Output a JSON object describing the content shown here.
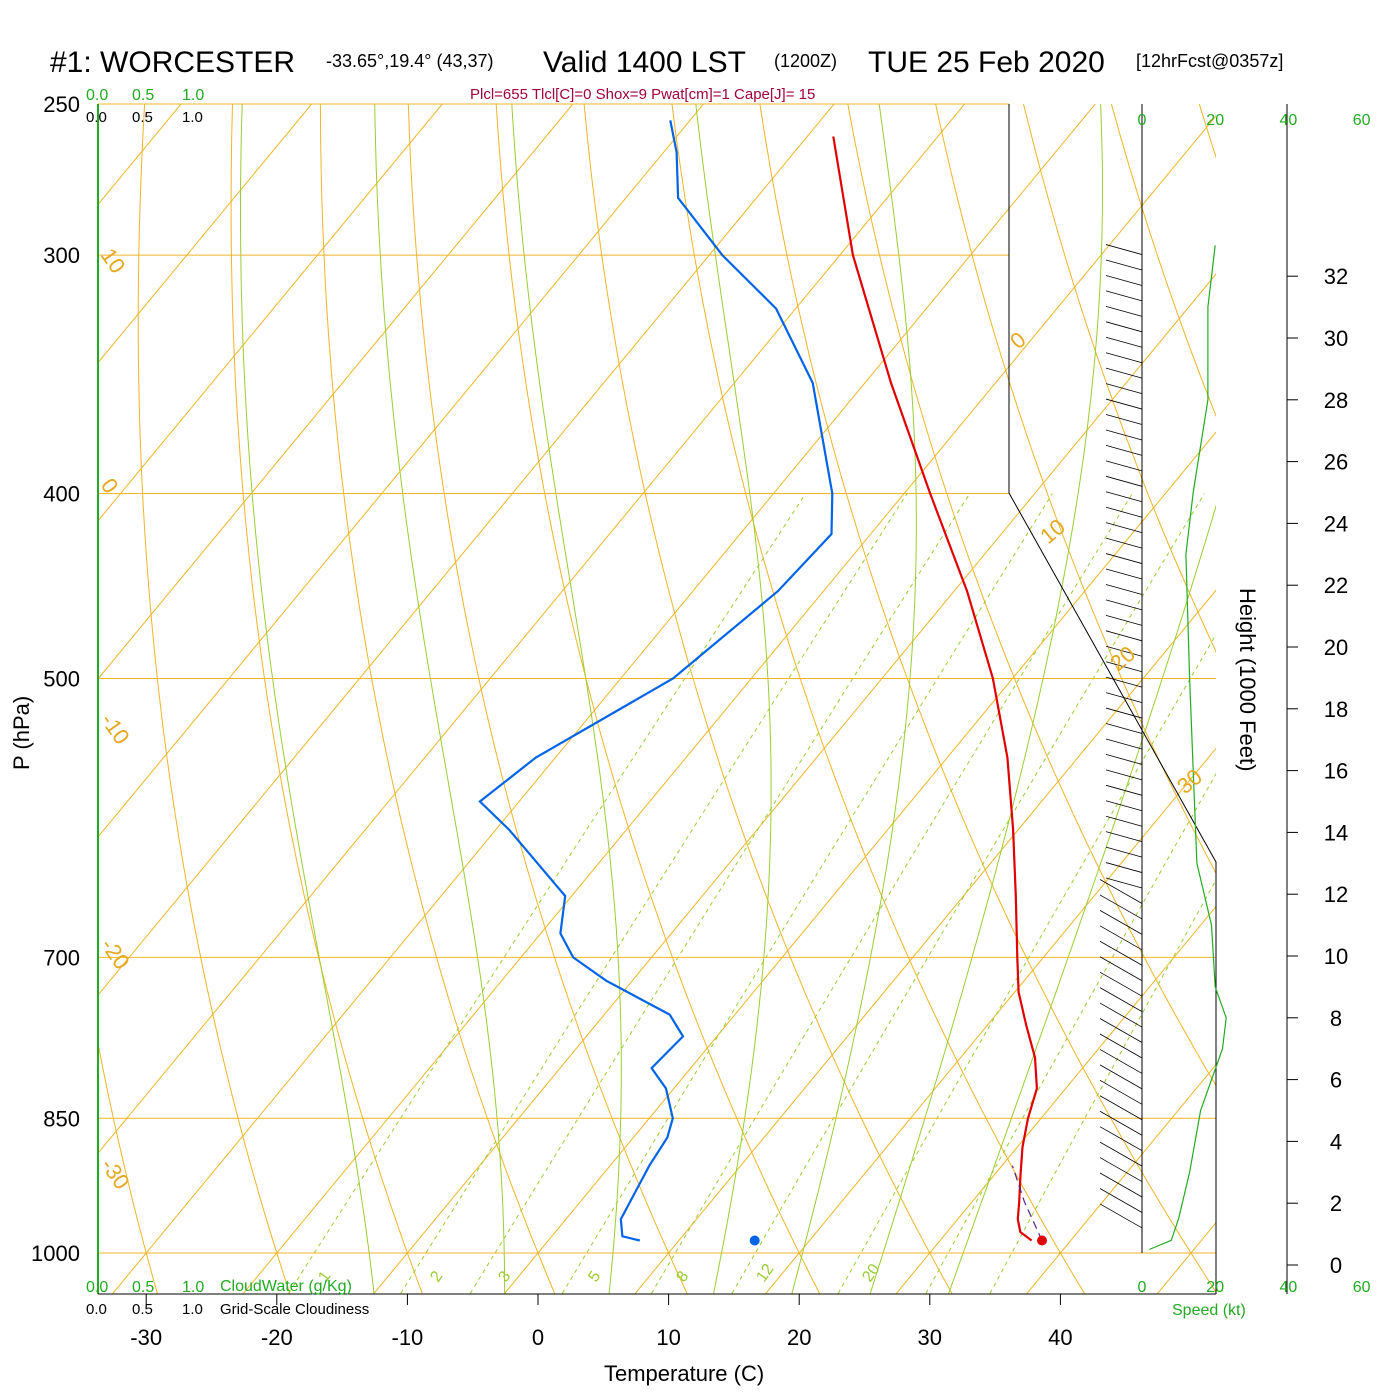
{
  "title": {
    "station": "#1: WORCESTER",
    "coords": "-33.65°,19.4° (43,37)",
    "valid": "Valid 1400 LST",
    "utc": "(1200Z)",
    "date": "TUE 25 Feb 2020",
    "forecast": "[12hrFcst@0357z]"
  },
  "params_line": "Plcl=655 Tlcl[C]=0 Shox=9 Pwat[cm]=1 Cape[J]= 15",
  "cloud_scale": {
    "values": [
      "0.0",
      "0.5",
      "1.0"
    ],
    "cloudwater_label": "CloudWater (g/Kg)",
    "cloudiness_label": "Grid-Scale Cloudiness"
  },
  "colors": {
    "temperature": "#e00000",
    "dewpoint": "#0064e6",
    "isotherm": "#f0b428",
    "adiabat": "#9acd32",
    "mixing_ratio": "#9acd32",
    "speed": "#22aa22",
    "params": "#a0003c"
  },
  "chart_data": {
    "type": "skew-t",
    "xlabel": "Temperature (C)",
    "ylabel": "P (hPa)",
    "y2label": "Height (1000 Feet)",
    "speed_label": "Speed (kt)",
    "x_ticks": [
      -30,
      -20,
      -10,
      0,
      10,
      20,
      30,
      40
    ],
    "p_ticks": [
      250,
      300,
      400,
      500,
      700,
      850,
      1000
    ],
    "height_ticks": [
      0,
      2,
      4,
      6,
      8,
      10,
      12,
      14,
      16,
      18,
      20,
      22,
      24,
      26,
      28,
      30,
      32
    ],
    "speed_ticks": [
      0,
      20,
      40,
      60
    ],
    "isotherm_labels": [
      "10",
      "0",
      "-10",
      "-20",
      "-30"
    ],
    "adiabat_labels": [
      "0",
      "10",
      "20",
      "30"
    ],
    "mixing_ratio_labels": [
      "1",
      "2",
      "3",
      "5",
      "8",
      "12",
      "20"
    ],
    "temperature_profile": [
      {
        "p": 985,
        "t": 37.0
      },
      {
        "p": 975,
        "t": 35.6
      },
      {
        "p": 960,
        "t": 34.6
      },
      {
        "p": 940,
        "t": 33.6
      },
      {
        "p": 910,
        "t": 32.0
      },
      {
        "p": 880,
        "t": 30.4
      },
      {
        "p": 850,
        "t": 29.0
      },
      {
        "p": 820,
        "t": 27.8
      },
      {
        "p": 790,
        "t": 25.7
      },
      {
        "p": 760,
        "t": 23.0
      },
      {
        "p": 730,
        "t": 20.3
      },
      {
        "p": 700,
        "t": 18.0
      },
      {
        "p": 650,
        "t": 14.0
      },
      {
        "p": 600,
        "t": 9.6
      },
      {
        "p": 550,
        "t": 4.6
      },
      {
        "p": 500,
        "t": -1.5
      },
      {
        "p": 450,
        "t": -9.0
      },
      {
        "p": 400,
        "t": -18.0
      },
      {
        "p": 350,
        "t": -28.0
      },
      {
        "p": 300,
        "t": -39.0
      },
      {
        "p": 260,
        "t": -48.0
      }
    ],
    "dewpoint_profile": [
      {
        "p": 985,
        "t": 7.0
      },
      {
        "p": 980,
        "t": 5.4
      },
      {
        "p": 960,
        "t": 4.2
      },
      {
        "p": 900,
        "t": 3.0
      },
      {
        "p": 870,
        "t": 2.6
      },
      {
        "p": 850,
        "t": 1.8
      },
      {
        "p": 820,
        "t": -0.6
      },
      {
        "p": 800,
        "t": -3.0
      },
      {
        "p": 770,
        "t": -2.6
      },
      {
        "p": 750,
        "t": -5.0
      },
      {
        "p": 720,
        "t": -12.0
      },
      {
        "p": 700,
        "t": -16.0
      },
      {
        "p": 680,
        "t": -18.5
      },
      {
        "p": 650,
        "t": -20.5
      },
      {
        "p": 600,
        "t": -29.0
      },
      {
        "p": 580,
        "t": -33.0
      },
      {
        "p": 550,
        "t": -31.5
      },
      {
        "p": 500,
        "t": -26.0
      },
      {
        "p": 450,
        "t": -23.5
      },
      {
        "p": 420,
        "t": -23.0
      },
      {
        "p": 400,
        "t": -25.5
      },
      {
        "p": 350,
        "t": -34.0
      },
      {
        "p": 320,
        "t": -41.5
      },
      {
        "p": 300,
        "t": -49.0
      },
      {
        "p": 280,
        "t": -56.0
      },
      {
        "p": 265,
        "t": -59.0
      },
      {
        "p": 255,
        "t": -61.5
      }
    ],
    "parcel_trace": [
      {
        "p": 985,
        "t": 37.8
      },
      {
        "p": 940,
        "t": 34.0
      },
      {
        "p": 900,
        "t": 30.8
      }
    ],
    "surface_temperature": {
      "p": 985,
      "t": 37.8
    },
    "surface_dewpoint": {
      "p": 985,
      "t": 15.8
    },
    "wind_speed_profile_kt": [
      {
        "h": 0.5,
        "s": 2
      },
      {
        "h": 0.8,
        "s": 8
      },
      {
        "h": 1.5,
        "s": 10
      },
      {
        "h": 3,
        "s": 13
      },
      {
        "h": 5,
        "s": 16
      },
      {
        "h": 7,
        "s": 22
      },
      {
        "h": 8,
        "s": 23
      },
      {
        "h": 9,
        "s": 20
      },
      {
        "h": 11,
        "s": 19
      },
      {
        "h": 13,
        "s": 15
      },
      {
        "h": 16,
        "s": 14
      },
      {
        "h": 19,
        "s": 13
      },
      {
        "h": 23,
        "s": 12
      },
      {
        "h": 25,
        "s": 14
      },
      {
        "h": 28,
        "s": 18
      },
      {
        "h": 31,
        "s": 18
      },
      {
        "h": 33,
        "s": 20
      }
    ]
  }
}
